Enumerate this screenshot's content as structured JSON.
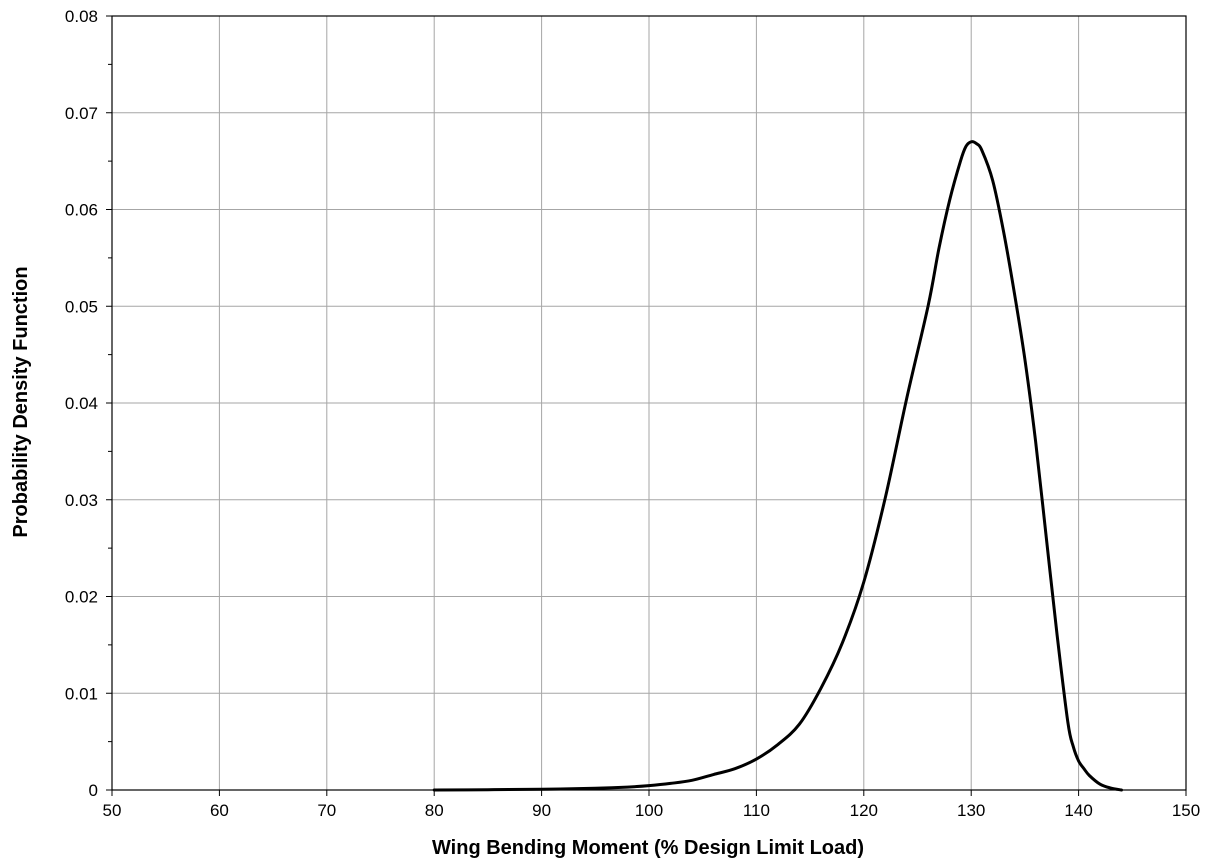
{
  "chart_data": {
    "type": "line",
    "title": "",
    "xlabel": "Wing Bending Moment (% Design Limit Load)",
    "ylabel": "Probability Density Function",
    "xlim": [
      50,
      150
    ],
    "ylim": [
      0,
      0.08
    ],
    "xticks": [
      50,
      60,
      70,
      80,
      90,
      100,
      110,
      120,
      130,
      140,
      150
    ],
    "yticks": [
      0,
      0.01,
      0.02,
      0.03,
      0.04,
      0.05,
      0.06,
      0.07,
      0.08
    ],
    "xtick_labels": [
      "50",
      "60",
      "70",
      "80",
      "90",
      "100",
      "110",
      "120",
      "130",
      "140",
      "150"
    ],
    "ytick_labels": [
      "0",
      "0.01",
      "0.02",
      "0.03",
      "0.04",
      "0.05",
      "0.06",
      "0.07",
      "0.08"
    ],
    "grid": true,
    "legend": "none",
    "series": [
      {
        "color": "#000000",
        "x": [
          80,
          85,
          90,
          95,
          98,
          100,
          102,
          104,
          106,
          108,
          110,
          112,
          114,
          116,
          118,
          120,
          122,
          124,
          126,
          127,
          128,
          129,
          129.5,
          130,
          130.5,
          131,
          132,
          133,
          134,
          135,
          136,
          137,
          138,
          139,
          139.5,
          140,
          140.5,
          141,
          142,
          143,
          144
        ],
        "y": [
          0.0,
          3e-05,
          8e-05,
          0.00018,
          0.0003,
          0.00045,
          0.00068,
          0.001,
          0.0016,
          0.0022,
          0.0032,
          0.0047,
          0.0068,
          0.0105,
          0.0152,
          0.0215,
          0.0302,
          0.0405,
          0.0501,
          0.056,
          0.061,
          0.065,
          0.0665,
          0.067,
          0.0668,
          0.0661,
          0.063,
          0.0578,
          0.0515,
          0.0445,
          0.036,
          0.026,
          0.016,
          0.007,
          0.0045,
          0.003,
          0.0022,
          0.0015,
          0.0006,
          0.0002,
          0.0
        ]
      }
    ]
  }
}
